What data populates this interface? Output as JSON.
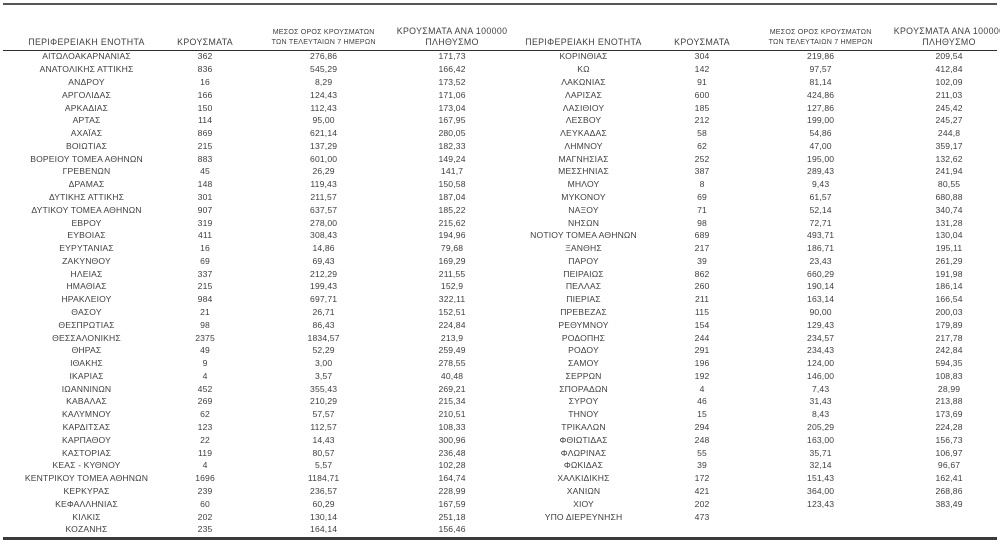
{
  "page": {
    "background_color": "#ffffff",
    "text_color": "#3f3f3f",
    "rule_color": "#3a3a3a"
  },
  "table": {
    "headers": {
      "region": "ΠΕΡΙΦΕΡΕΙΑΚΗ ΕΝΟΤΗΤΑ",
      "cases": "ΚΡΟΥΣΜΑΤΑ",
      "avg7": [
        "ΜΕΣΟΣ ΟΡΟΣ ΚΡΟΥΣΜΑΤΩΝ",
        "ΤΩΝ ΤΕΛΕΥΤΑΙΩΝ 7 ΗΜΕΡΩΝ"
      ],
      "per100k": [
        "ΚΡΟΥΣΜΑΤΑ ΑΝΑ 100000",
        "ΠΛΗΘΥΣΜΟ"
      ]
    },
    "left_rows": [
      [
        "ΑΙΤΩΛΟΑΚΑΡΝΑΝΙΑΣ",
        "362",
        "276,86",
        "171,73"
      ],
      [
        "ΑΝΑΤΟΛΙΚΗΣ ΑΤΤΙΚΗΣ",
        "836",
        "545,29",
        "166,42"
      ],
      [
        "ΑΝΔΡΟΥ",
        "16",
        "8,29",
        "173,52"
      ],
      [
        "ΑΡΓΟΛΙΔΑΣ",
        "166",
        "124,43",
        "171,06"
      ],
      [
        "ΑΡΚΑΔΙΑΣ",
        "150",
        "112,43",
        "173,04"
      ],
      [
        "ΑΡΤΑΣ",
        "114",
        "95,00",
        "167,95"
      ],
      [
        "ΑΧΑΪΑΣ",
        "869",
        "621,14",
        "280,05"
      ],
      [
        "ΒΟΙΩΤΙΑΣ",
        "215",
        "137,29",
        "182,33"
      ],
      [
        "ΒΟΡΕΙΟΥ ΤΟΜΕΑ ΑΘΗΝΩΝ",
        "883",
        "601,00",
        "149,24"
      ],
      [
        "ΓΡΕΒΕΝΩΝ",
        "45",
        "26,29",
        "141,7"
      ],
      [
        "ΔΡΑΜΑΣ",
        "148",
        "119,43",
        "150,58"
      ],
      [
        "ΔΥΤΙΚΗΣ ΑΤΤΙΚΗΣ",
        "301",
        "211,57",
        "187,04"
      ],
      [
        "ΔΥΤΙΚΟΥ ΤΟΜΕΑ ΑΘΗΝΩΝ",
        "907",
        "637,57",
        "185,22"
      ],
      [
        "ΕΒΡΟΥ",
        "319",
        "278,00",
        "215,62"
      ],
      [
        "ΕΥΒΟΙΑΣ",
        "411",
        "308,43",
        "194,96"
      ],
      [
        "ΕΥΡΥΤΑΝΙΑΣ",
        "16",
        "14,86",
        "79,68"
      ],
      [
        "ΖΑΚΥΝΘΟΥ",
        "69",
        "69,43",
        "169,29"
      ],
      [
        "ΗΛΕΙΑΣ",
        "337",
        "212,29",
        "211,55"
      ],
      [
        "ΗΜΑΘΙΑΣ",
        "215",
        "199,43",
        "152,9"
      ],
      [
        "ΗΡΑΚΛΕΙΟΥ",
        "984",
        "697,71",
        "322,11"
      ],
      [
        "ΘΑΣΟΥ",
        "21",
        "26,71",
        "152,51"
      ],
      [
        "ΘΕΣΠΡΩΤΙΑΣ",
        "98",
        "86,43",
        "224,84"
      ],
      [
        "ΘΕΣΣΑΛΟΝΙΚΗΣ",
        "2375",
        "1834,57",
        "213,9"
      ],
      [
        "ΘΗΡΑΣ",
        "49",
        "52,29",
        "259,49"
      ],
      [
        "ΙΘΑΚΗΣ",
        "9",
        "3,00",
        "278,55"
      ],
      [
        "ΙΚΑΡΙΑΣ",
        "4",
        "3,57",
        "40,48"
      ],
      [
        "ΙΩΑΝΝΙΝΩΝ",
        "452",
        "355,43",
        "269,21"
      ],
      [
        "ΚΑΒΑΛΑΣ",
        "269",
        "210,29",
        "215,34"
      ],
      [
        "ΚΑΛΥΜΝΟΥ",
        "62",
        "57,57",
        "210,51"
      ],
      [
        "ΚΑΡΔΙΤΣΑΣ",
        "123",
        "112,57",
        "108,33"
      ],
      [
        "ΚΑΡΠΑΘΟΥ",
        "22",
        "14,43",
        "300,96"
      ],
      [
        "ΚΑΣΤΟΡΙΑΣ",
        "119",
        "80,57",
        "236,48"
      ],
      [
        "ΚΕΑΣ - ΚΥΘΝΟΥ",
        "4",
        "5,57",
        "102,28"
      ],
      [
        "ΚΕΝΤΡΙΚΟΥ ΤΟΜΕΑ ΑΘΗΝΩΝ",
        "1696",
        "1184,71",
        "164,74"
      ],
      [
        "ΚΕΡΚΥΡΑΣ",
        "239",
        "236,57",
        "228,99"
      ],
      [
        "ΚΕΦΑΛΛΗΝΙΑΣ",
        "60",
        "60,29",
        "167,59"
      ],
      [
        "ΚΙΛΚΙΣ",
        "202",
        "130,14",
        "251,18"
      ],
      [
        "ΚΟΖΑΝΗΣ",
        "235",
        "164,14",
        "156,46"
      ]
    ],
    "right_rows": [
      [
        "ΚΟΡΙΝΘΙΑΣ",
        "304",
        "219,86",
        "209,54"
      ],
      [
        "ΚΩ",
        "142",
        "97,57",
        "412,84"
      ],
      [
        "ΛΑΚΩΝΙΑΣ",
        "91",
        "81,14",
        "102,09"
      ],
      [
        "ΛΑΡΙΣΑΣ",
        "600",
        "424,86",
        "211,03"
      ],
      [
        "ΛΑΣΙΘΙΟΥ",
        "185",
        "127,86",
        "245,42"
      ],
      [
        "ΛΕΣΒΟΥ",
        "212",
        "199,00",
        "245,27"
      ],
      [
        "ΛΕΥΚΑΔΑΣ",
        "58",
        "54,86",
        "244,8"
      ],
      [
        "ΛΗΜΝΟΥ",
        "62",
        "47,00",
        "359,17"
      ],
      [
        "ΜΑΓΝΗΣΙΑΣ",
        "252",
        "195,00",
        "132,62"
      ],
      [
        "ΜΕΣΣΗΝΙΑΣ",
        "387",
        "289,43",
        "241,94"
      ],
      [
        "ΜΗΛΟΥ",
        "8",
        "9,43",
        "80,55"
      ],
      [
        "ΜΥΚΟΝΟΥ",
        "69",
        "61,57",
        "680,88"
      ],
      [
        "ΝΑΞΟΥ",
        "71",
        "52,14",
        "340,74"
      ],
      [
        "ΝΗΣΩΝ",
        "98",
        "72,71",
        "131,28"
      ],
      [
        "ΝΟΤΙΟΥ ΤΟΜΕΑ ΑΘΗΝΩΝ",
        "689",
        "493,71",
        "130,04"
      ],
      [
        "ΞΑΝΘΗΣ",
        "217",
        "186,71",
        "195,11"
      ],
      [
        "ΠΑΡΟΥ",
        "39",
        "23,43",
        "261,29"
      ],
      [
        "ΠΕΙΡΑΙΩΣ",
        "862",
        "660,29",
        "191,98"
      ],
      [
        "ΠΕΛΛΑΣ",
        "260",
        "190,14",
        "186,14"
      ],
      [
        "ΠΙΕΡΙΑΣ",
        "211",
        "163,14",
        "166,54"
      ],
      [
        "ΠΡΕΒΕΖΑΣ",
        "115",
        "90,00",
        "200,03"
      ],
      [
        "ΡΕΘΥΜΝΟΥ",
        "154",
        "129,43",
        "179,89"
      ],
      [
        "ΡΟΔΟΠΗΣ",
        "244",
        "234,57",
        "217,78"
      ],
      [
        "ΡΟΔΟΥ",
        "291",
        "234,43",
        "242,84"
      ],
      [
        "ΣΑΜΟΥ",
        "196",
        "124,00",
        "594,35"
      ],
      [
        "ΣΕΡΡΩΝ",
        "192",
        "146,00",
        "108,83"
      ],
      [
        "ΣΠΟΡΑΔΩΝ",
        "4",
        "7,43",
        "28,99"
      ],
      [
        "ΣΥΡΟΥ",
        "46",
        "31,43",
        "213,88"
      ],
      [
        "ΤΗΝΟΥ",
        "15",
        "8,43",
        "173,69"
      ],
      [
        "ΤΡΙΚΑΛΩΝ",
        "294",
        "205,29",
        "224,28"
      ],
      [
        "ΦΘΙΩΤΙΔΑΣ",
        "248",
        "163,00",
        "156,73"
      ],
      [
        "ΦΛΩΡΙΝΑΣ",
        "55",
        "35,71",
        "106,97"
      ],
      [
        "ΦΩΚΙΔΑΣ",
        "39",
        "32,14",
        "96,67"
      ],
      [
        "ΧΑΛΚΙΔΙΚΗΣ",
        "172",
        "151,43",
        "162,41"
      ],
      [
        "ΧΑΝΙΩΝ",
        "421",
        "364,00",
        "268,86"
      ],
      [
        "ΧΙΟΥ",
        "202",
        "123,43",
        "383,49"
      ],
      [
        "ΥΠΟ ΔΙΕΡΕΥΝΗΣΗ",
        "473",
        "",
        ""
      ]
    ]
  }
}
